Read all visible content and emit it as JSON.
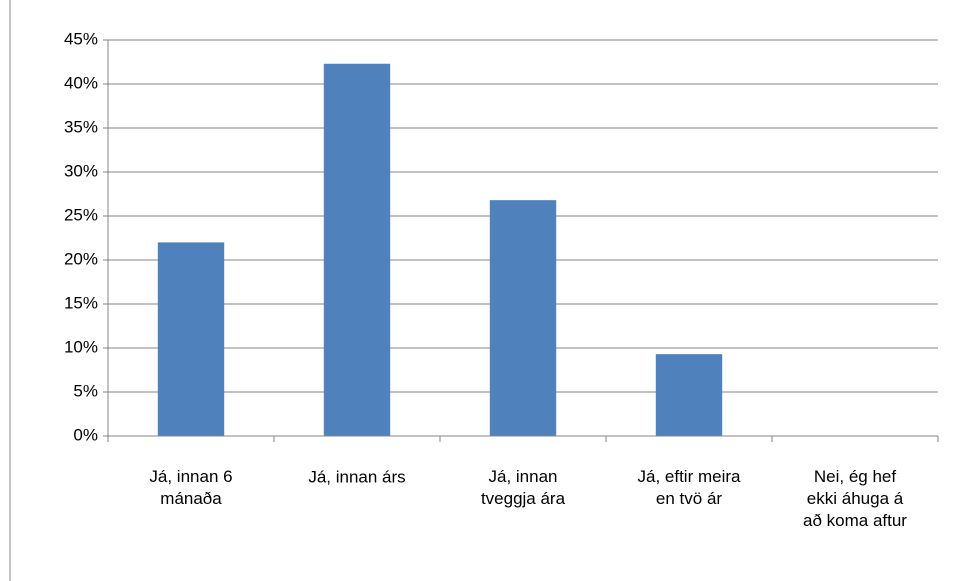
{
  "chart_data": {
    "type": "bar",
    "categories": [
      "Já, innan 6\nmánaða",
      "Já, innan árs",
      "Já, innan\ntveggja ára",
      "Já, eftir meira\nen tvö ár",
      "Nei, ég hef\nekki áhuga á\nað koma aftur"
    ],
    "values": [
      22.0,
      42.3,
      26.8,
      9.3,
      0
    ],
    "color": "#4f81bd",
    "ylim": [
      0,
      45
    ],
    "yticks": [
      {
        "value": 0,
        "label": "0%"
      },
      {
        "value": 5,
        "label": "5%"
      },
      {
        "value": 10,
        "label": "10%"
      },
      {
        "value": 15,
        "label": "15%"
      },
      {
        "value": 20,
        "label": "20%"
      },
      {
        "value": 25,
        "label": "25%"
      },
      {
        "value": 30,
        "label": "30%"
      },
      {
        "value": 35,
        "label": "35%"
      },
      {
        "value": 40,
        "label": "40%"
      },
      {
        "value": 45,
        "label": "45%"
      }
    ],
    "grid": true
  }
}
